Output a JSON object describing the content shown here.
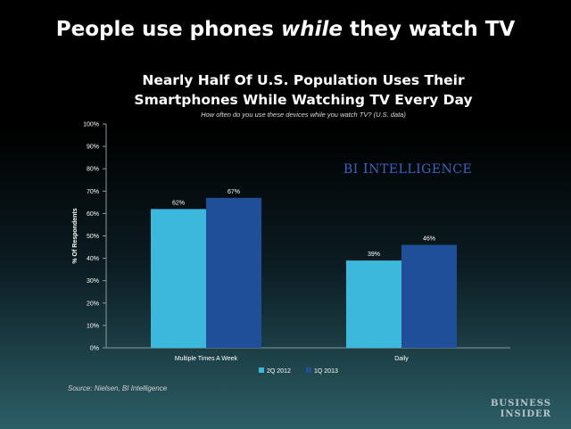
{
  "slide": {
    "title_before": "People use phones ",
    "title_em": "while",
    "title_after": " they watch TV"
  },
  "source": "Source: Nielsen, BI Intelligence",
  "watermark": {
    "first": "BI ",
    "rest_cap": "I",
    "rest": "NTELLIGENCE"
  },
  "logo": {
    "line1": "BUSINESS",
    "line2": "INSIDER"
  },
  "colors": {
    "series_2q2012": "#3bb8dc",
    "series_1q2013": "#1f4f98"
  },
  "chart_data": {
    "type": "bar",
    "title_line1": "Nearly Half Of U.S. Population Uses Their",
    "title_line2": "Smartphones While Watching TV Every Day",
    "subtitle": "How often do you use these devices while you watch TV? (U.S. data)",
    "ylabel": "% Of Respondents",
    "xlabel": "",
    "ylim": [
      0,
      100
    ],
    "yticks": [
      "0%",
      "10%",
      "20%",
      "30%",
      "40%",
      "50%",
      "60%",
      "70%",
      "80%",
      "90%",
      "100%"
    ],
    "categories": [
      "Multiple Times A Week",
      "Daily"
    ],
    "series": [
      {
        "name": "2Q 2012",
        "values": [
          62,
          39
        ],
        "labels": [
          "62%",
          "39%"
        ]
      },
      {
        "name": "1Q 2013",
        "values": [
          67,
          46
        ],
        "labels": [
          "67%",
          "46%"
        ]
      }
    ],
    "legend_position": "bottom-center",
    "grid": false
  }
}
